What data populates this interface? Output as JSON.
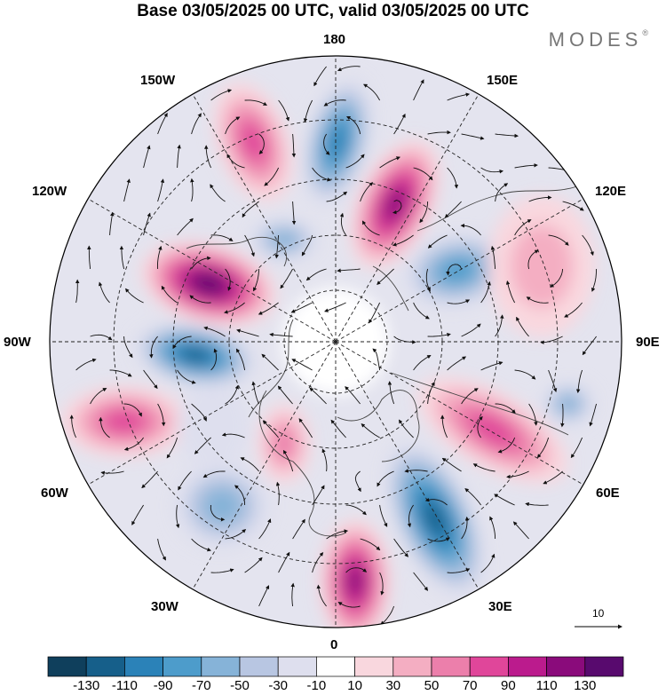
{
  "title": "Base 03/05/2025 00 UTC, valid 03/05/2025 00 UTC",
  "brand": "MODES",
  "brand_mark": "®",
  "longitude_labels": {
    "lon_180": "180",
    "lon_150e": "150E",
    "lon_120e": "120E",
    "lon_90e": "90E",
    "lon_60e": "60E",
    "lon_30e": "30E",
    "lon_0": "0",
    "lon_30w": "30W",
    "lon_60w": "60W",
    "lon_90w": "90W",
    "lon_120w": "120W",
    "lon_150w": "150W"
  },
  "reference_vector_label": "10",
  "colorbar": {
    "colors": [
      "#0f3f5c",
      "#165f8a",
      "#2b82b8",
      "#4d9ccb",
      "#86b3d8",
      "#b8c6e2",
      "#dedfee",
      "#ffffff",
      "#f9d7de",
      "#f4aec2",
      "#ec7fab",
      "#e0469a",
      "#bb1b8d",
      "#8a0b7b",
      "#580a6e"
    ],
    "tick_labels": [
      "-130",
      "-110",
      "-90",
      "-70",
      "-50",
      "-30",
      "-10",
      "10",
      "30",
      "50",
      "70",
      "90",
      "110",
      "130"
    ]
  },
  "colors": {
    "land_outline": "#444444",
    "grid": "#222222",
    "streamline": "#111111"
  }
}
